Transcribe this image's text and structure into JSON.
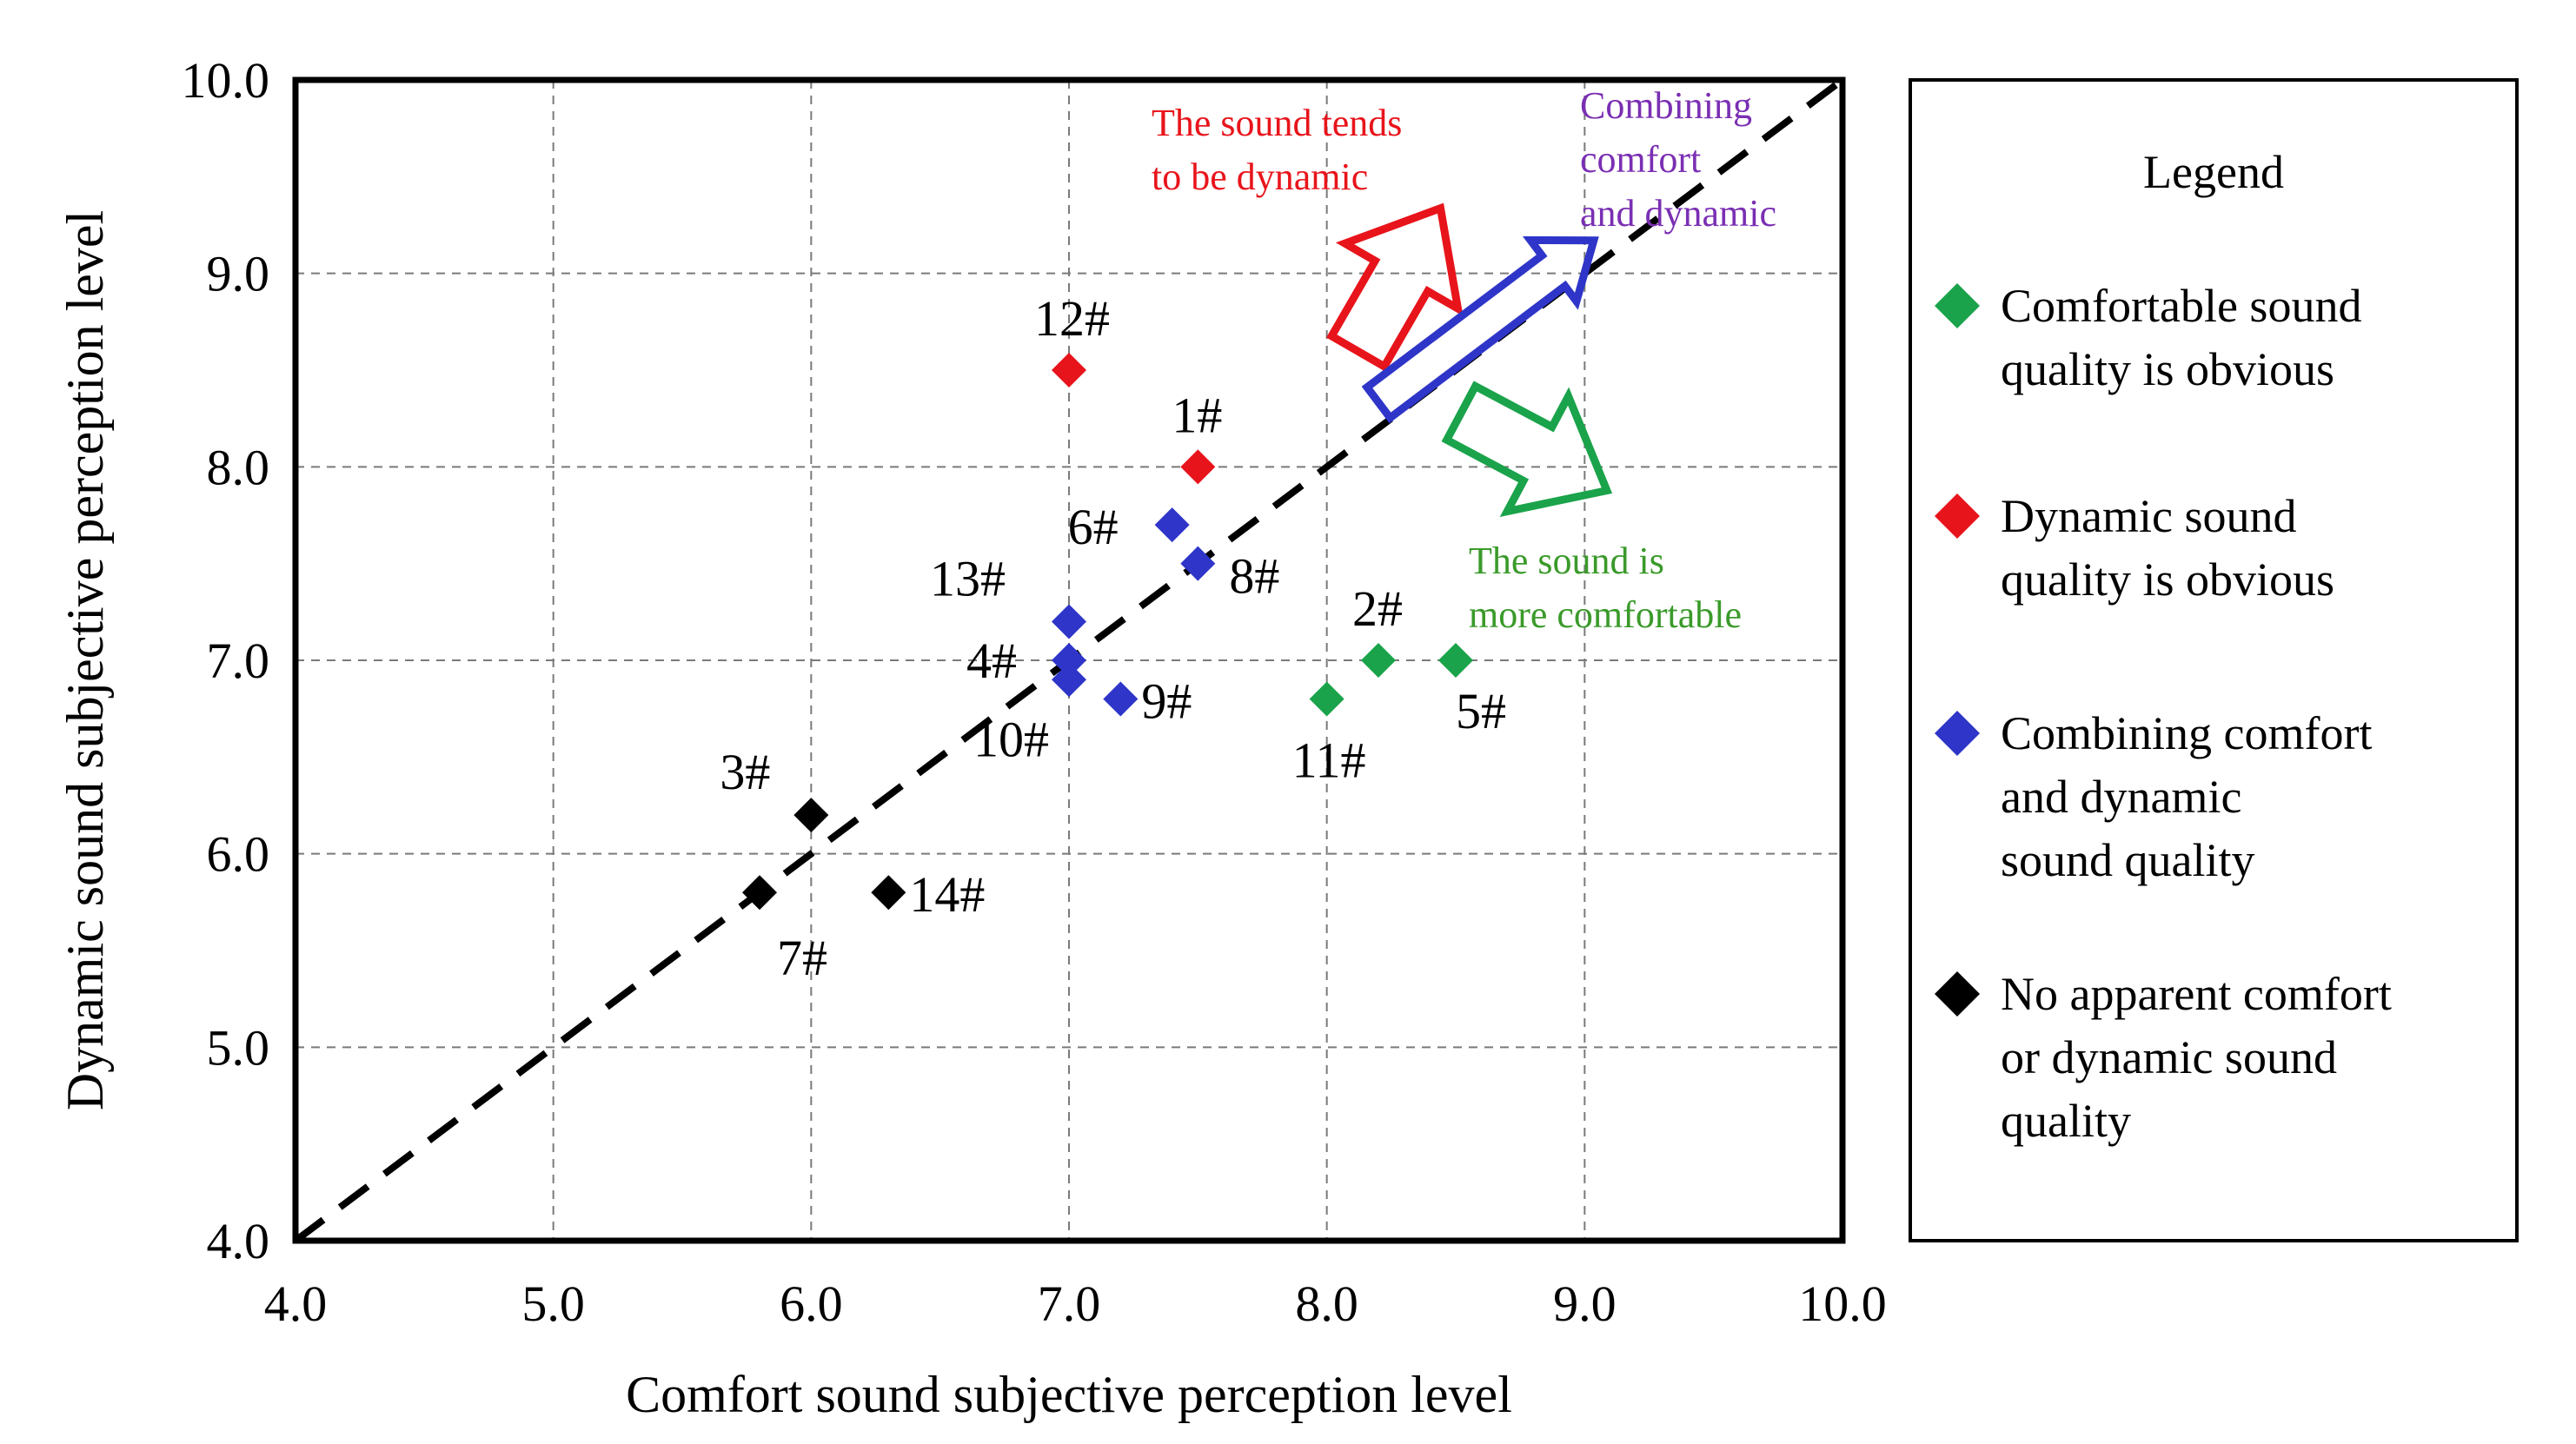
{
  "chart_data": {
    "type": "scatter",
    "title": "",
    "xlabel": "Comfort sound subjective perception level",
    "ylabel": "Dynamic sound subjective perception level",
    "xlim": [
      4.0,
      10.0
    ],
    "ylim": [
      4.0,
      10.0
    ],
    "xticks": [
      "4.0",
      "5.0",
      "6.0",
      "7.0",
      "8.0",
      "9.0",
      "10.0"
    ],
    "yticks": [
      "4.0",
      "5.0",
      "6.0",
      "7.0",
      "8.0",
      "9.0",
      "10.0"
    ],
    "grid": true,
    "reference_line": {
      "style": "dashed",
      "from": [
        4.0,
        4.0
      ],
      "to": [
        10.0,
        10.0
      ]
    },
    "legend": {
      "title": "Legend",
      "placement": "right",
      "entries": [
        {
          "key": "comfort",
          "color": "#1aa34a",
          "lines": [
            "Comfortable sound",
            "quality is obvious"
          ]
        },
        {
          "key": "dynamic",
          "color": "#e8141b",
          "lines": [
            "Dynamic sound",
            "quality is obvious"
          ]
        },
        {
          "key": "both",
          "color": "#2e35c8",
          "lines": [
            "Combining comfort",
            "and dynamic",
            "sound quality"
          ]
        },
        {
          "key": "none",
          "color": "#000000",
          "lines": [
            "No apparent comfort",
            "or dynamic sound",
            "quality"
          ]
        }
      ]
    },
    "series": [
      {
        "name": "Comfortable sound quality is obvious",
        "color": "#1aa34a",
        "points": [
          {
            "label": "2#",
            "x": 8.2,
            "y": 7.0
          },
          {
            "label": "5#",
            "x": 8.5,
            "y": 7.0
          },
          {
            "label": "11#",
            "x": 8.0,
            "y": 6.8
          }
        ]
      },
      {
        "name": "Dynamic sound quality is obvious",
        "color": "#e8141b",
        "points": [
          {
            "label": "12#",
            "x": 7.0,
            "y": 8.5
          },
          {
            "label": "1#",
            "x": 7.5,
            "y": 8.0
          }
        ]
      },
      {
        "name": "Combining comfort and dynamic sound quality",
        "color": "#2e35c8",
        "points": [
          {
            "label": "6#",
            "x": 7.4,
            "y": 7.7
          },
          {
            "label": "8#",
            "x": 7.5,
            "y": 7.5
          },
          {
            "label": "13#",
            "x": 7.0,
            "y": 7.2
          },
          {
            "label": "4#",
            "x": 7.0,
            "y": 7.0
          },
          {
            "label": "10#",
            "x": 7.0,
            "y": 6.9
          },
          {
            "label": "9#",
            "x": 7.2,
            "y": 6.8
          }
        ]
      },
      {
        "name": "No apparent comfort or dynamic sound quality",
        "color": "#000000",
        "points": [
          {
            "label": "3#",
            "x": 6.0,
            "y": 6.2
          },
          {
            "label": "7#",
            "x": 5.8,
            "y": 5.8
          },
          {
            "label": "14#",
            "x": 6.3,
            "y": 5.8
          }
        ]
      }
    ],
    "annotations": [
      {
        "key": "dynamic_note",
        "color": "#e8141b",
        "lines": [
          "The sound tends",
          "to be dynamic"
        ]
      },
      {
        "key": "both_note",
        "color": "#7a2fb3",
        "lines": [
          "Combining",
          "comfort",
          "and dynamic"
        ]
      },
      {
        "key": "comfort_note",
        "color": "#3a9a2a",
        "lines": [
          "The sound is",
          "more comfortable"
        ]
      }
    ]
  }
}
